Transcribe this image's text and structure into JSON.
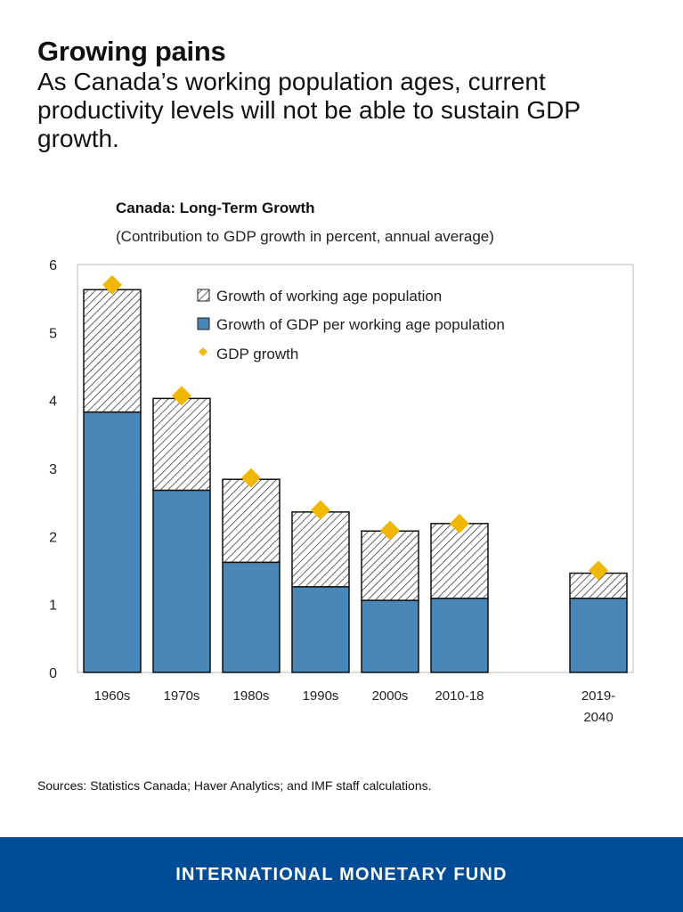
{
  "headline": {
    "title": "Growing pains",
    "subtitle": "As Canada’s working population ages, current productivity levels will not be able to sustain GDP growth."
  },
  "chart_data": {
    "type": "bar",
    "stacked": true,
    "title": "Canada: Long-Term Growth",
    "subtitle": "(Contribution to GDP growth in percent, annual average)",
    "categories": [
      "1960s",
      "1970s",
      "1980s",
      "1990s",
      "2000s",
      "2010-18",
      "2019-\n2040"
    ],
    "category_labels": [
      [
        "1960s"
      ],
      [
        "1970s"
      ],
      [
        "1980s"
      ],
      [
        "1990s"
      ],
      [
        "2000s"
      ],
      [
        "2010-18"
      ],
      [
        "2019-",
        "2040"
      ]
    ],
    "gap_before_last": true,
    "series": [
      {
        "name": "Growth of GDP per working age population",
        "values": [
          3.83,
          2.68,
          1.62,
          1.26,
          1.06,
          1.09,
          1.09
        ],
        "color": "#4a87b9",
        "style": "solid"
      },
      {
        "name": "Growth of working age population",
        "values": [
          1.8,
          1.35,
          1.22,
          1.1,
          1.02,
          1.1,
          0.37
        ],
        "color": "#ffffff",
        "style": "hatched"
      }
    ],
    "markers": {
      "name": "GDP growth",
      "values": [
        5.7,
        4.07,
        2.86,
        2.39,
        2.09,
        2.19,
        1.5
      ],
      "color": "#f2b705",
      "shape": "diamond"
    },
    "yticks": [
      0,
      1,
      2,
      3,
      4,
      5,
      6
    ],
    "ylim": [
      0,
      6
    ],
    "xlabel": "",
    "ylabel": "",
    "grid": false,
    "legend": {
      "placement": "top-right",
      "entries": [
        "Growth of working age population",
        "Growth of GDP per working age population",
        "GDP growth"
      ]
    }
  },
  "source": "Sources: Statistics Canada; Haver Analytics; and IMF staff calculations.",
  "footer": {
    "label": "INTERNATIONAL MONETARY FUND",
    "background": "#004c97"
  }
}
